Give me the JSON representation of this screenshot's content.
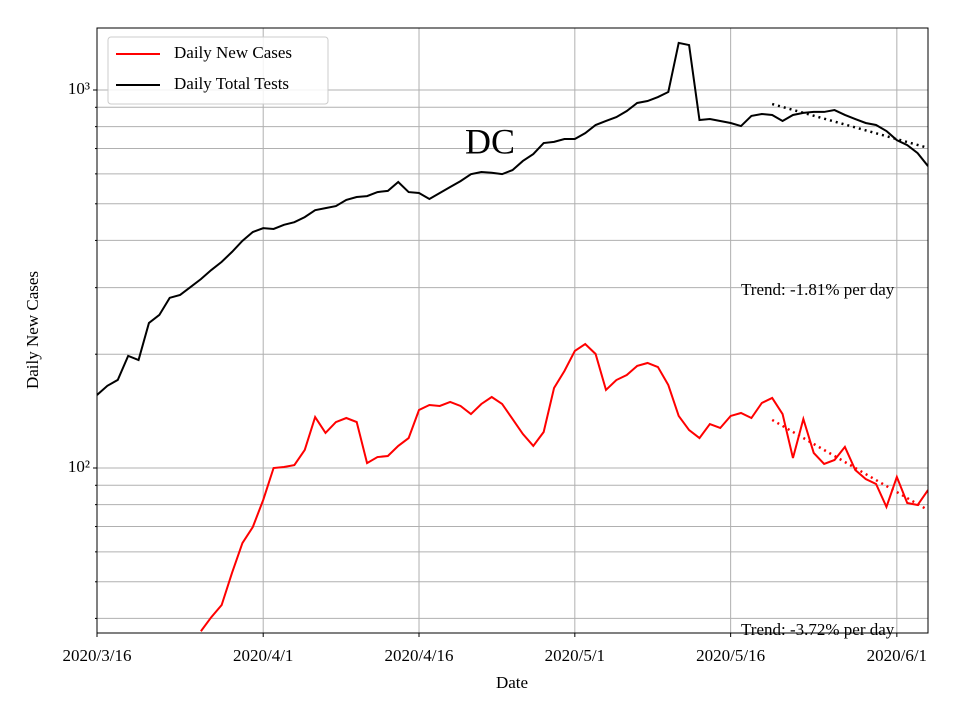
{
  "chart_data": {
    "type": "line",
    "title": "DC",
    "xlabel": "Date",
    "ylabel": "Daily New Cases",
    "log_y": true,
    "grid": true,
    "legend": "upper left",
    "x": [
      "2020-03-16",
      "2020-03-17",
      "2020-03-18",
      "2020-03-19",
      "2020-03-20",
      "2020-03-21",
      "2020-03-22",
      "2020-03-23",
      "2020-03-24",
      "2020-03-25",
      "2020-03-26",
      "2020-03-27",
      "2020-03-28",
      "2020-03-29",
      "2020-03-30",
      "2020-03-31",
      "2020-04-01",
      "2020-04-02",
      "2020-04-03",
      "2020-04-04",
      "2020-04-05",
      "2020-04-06",
      "2020-04-07",
      "2020-04-08",
      "2020-04-09",
      "2020-04-10",
      "2020-04-11",
      "2020-04-12",
      "2020-04-13",
      "2020-04-14",
      "2020-04-15",
      "2020-04-16",
      "2020-04-17",
      "2020-04-18",
      "2020-04-19",
      "2020-04-20",
      "2020-04-21",
      "2020-04-22",
      "2020-04-23",
      "2020-04-24",
      "2020-04-25",
      "2020-04-26",
      "2020-04-27",
      "2020-04-28",
      "2020-04-29",
      "2020-04-30",
      "2020-05-01",
      "2020-05-02",
      "2020-05-03",
      "2020-05-04",
      "2020-05-05",
      "2020-05-06",
      "2020-05-07",
      "2020-05-08",
      "2020-05-09",
      "2020-05-10",
      "2020-05-11",
      "2020-05-12",
      "2020-05-13",
      "2020-05-14",
      "2020-05-15",
      "2020-05-16",
      "2020-05-17",
      "2020-05-18",
      "2020-05-19",
      "2020-05-20",
      "2020-05-21",
      "2020-05-22",
      "2020-05-23",
      "2020-05-24",
      "2020-05-25",
      "2020-05-26",
      "2020-05-27",
      "2020-05-28",
      "2020-05-29",
      "2020-05-30",
      "2020-05-31",
      "2020-06-01",
      "2020-06-02",
      "2020-06-03",
      "2020-06-04"
    ],
    "xlim": [
      "2020-03-16",
      "2020-06-04"
    ],
    "xticks": [
      {
        "value": "2020-03-16",
        "label": "2020/3/16"
      },
      {
        "value": "2020-04-01",
        "label": "2020/4/1"
      },
      {
        "value": "2020-04-16",
        "label": "2020/4/16"
      },
      {
        "value": "2020-05-01",
        "label": "2020/5/1"
      },
      {
        "value": "2020-05-16",
        "label": "2020/5/16"
      },
      {
        "value": "2020-06-01",
        "label": "2020/6/1"
      }
    ],
    "ylim": [
      36.6,
      1459
    ],
    "yticks": [
      {
        "value": 100,
        "label": "10²"
      },
      {
        "value": 1000,
        "label": "10³"
      }
    ],
    "yminorticks": [
      40,
      50,
      60,
      70,
      80,
      90,
      200,
      300,
      400,
      500,
      600,
      700,
      800,
      900
    ],
    "series": [
      {
        "name": "Daily New Cases",
        "color": "#ff0000",
        "values": [
          null,
          null,
          null,
          null,
          null,
          null,
          null,
          null,
          null,
          null,
          37,
          40.3,
          43.4,
          52.8,
          63.3,
          69.8,
          82.3,
          100,
          100.6,
          101.8,
          111.6,
          136.4,
          123.8,
          132.3,
          135.6,
          132.3,
          103,
          106.9,
          107.6,
          114.4,
          120,
          142.4,
          146.8,
          145.9,
          149.5,
          145.9,
          138.9,
          147.7,
          154.1,
          147.7,
          134.8,
          123,
          114.4,
          124.5,
          162.8,
          180.6,
          204,
          212.8,
          200.3,
          160.9,
          170.9,
          176.2,
          186.2,
          189.6,
          185,
          165.8,
          137.3,
          126,
          120,
          130.7,
          127.6,
          137.3,
          139.8,
          135.6,
          148.6,
          153.2,
          138.9,
          106.3,
          134.8,
          109.6,
          102.5,
          105,
          113.7,
          98.8,
          93.5,
          90.7,
          78.9,
          94.7,
          80.8,
          79.8,
          87.4
        ]
      },
      {
        "name": "Daily Total Tests",
        "color": "#000000",
        "values": [
          156,
          165,
          171,
          198,
          193,
          242,
          254,
          282,
          287,
          301,
          316,
          334,
          351,
          373,
          399,
          421,
          431,
          429,
          440,
          447,
          461,
          481,
          487,
          493,
          512,
          521,
          524,
          537,
          541,
          571,
          537,
          534,
          515,
          534,
          554,
          574,
          599,
          607,
          604,
          599,
          614,
          649,
          677,
          724,
          729,
          742,
          742,
          769,
          808,
          828,
          848,
          880,
          924,
          935,
          958,
          988,
          1332,
          1315,
          833,
          838,
          828,
          818,
          803,
          854,
          864,
          859,
          828,
          859,
          870,
          875,
          875,
          885,
          859,
          838,
          818,
          808,
          779,
          737,
          715,
          681,
          629
        ]
      }
    ],
    "trends": [
      {
        "color": "#000000",
        "x": [
          "2020-05-20",
          "2020-06-04"
        ],
        "values": [
          918,
          703
        ]
      },
      {
        "color": "#ff0000",
        "x": [
          "2020-05-20",
          "2020-06-04"
        ],
        "values": [
          134,
          77.4
        ]
      }
    ],
    "annotations": [
      {
        "text": "Trend: -1.81% per day"
      },
      {
        "text": "Trend: -3.72% per day"
      }
    ]
  }
}
